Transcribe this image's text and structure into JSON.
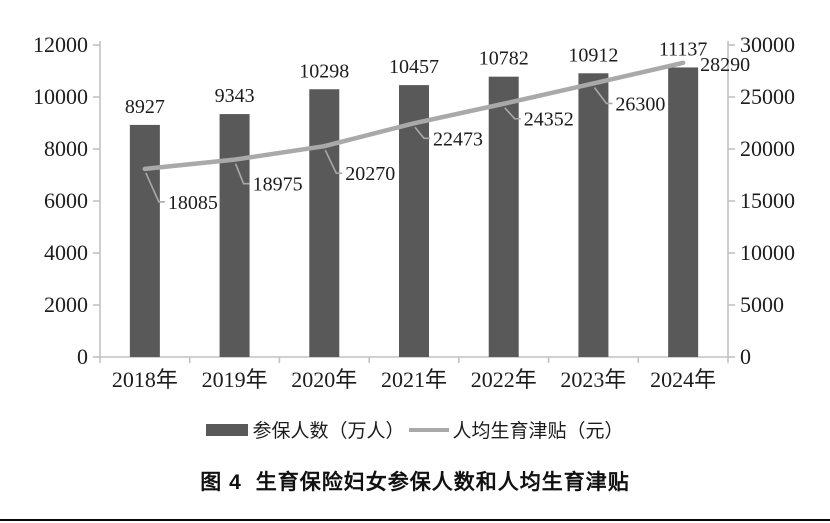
{
  "figure": {
    "caption_label": "图 4",
    "caption_title": "生育保险妇女参保人数和人均生育津贴"
  },
  "legend": [
    {
      "type": "bar",
      "label": "参保人数（万人）",
      "color": "#595959"
    },
    {
      "type": "line",
      "label": "人均生育津贴（元）",
      "color": "#a9a9a9"
    }
  ],
  "colors": {
    "bar": "#595959",
    "line": "#a9a9a9",
    "axis": "#c2c2c2",
    "leader": "#a9a9a9",
    "text": "#1c1c1c"
  },
  "chart_data": {
    "type": "bar",
    "subtype": "bar-with-line-overlay",
    "title": "图 4 生育保险妇女参保人数和人均生育津贴",
    "categories": [
      "2018年",
      "2019年",
      "2020年",
      "2021年",
      "2022年",
      "2023年",
      "2024年"
    ],
    "series": [
      {
        "name": "参保人数（万人）",
        "type": "bar",
        "axis": "left",
        "color": "#595959",
        "values": [
          8927,
          9343,
          10298,
          10457,
          10782,
          10912,
          11137
        ]
      },
      {
        "name": "人均生育津贴（元）",
        "type": "line",
        "axis": "right",
        "color": "#a9a9a9",
        "values": [
          18085,
          18975,
          20270,
          22473,
          24352,
          26300,
          28290
        ]
      }
    ],
    "left_axis": {
      "min": 0,
      "max": 12000,
      "ticks": [
        0,
        2000,
        4000,
        6000,
        8000,
        10000,
        12000
      ]
    },
    "right_axis": {
      "min": 0,
      "max": 30000,
      "ticks": [
        0,
        5000,
        10000,
        15000,
        20000,
        25000,
        30000
      ]
    },
    "grid": false,
    "data_labels": true,
    "legend_position": "bottom"
  }
}
